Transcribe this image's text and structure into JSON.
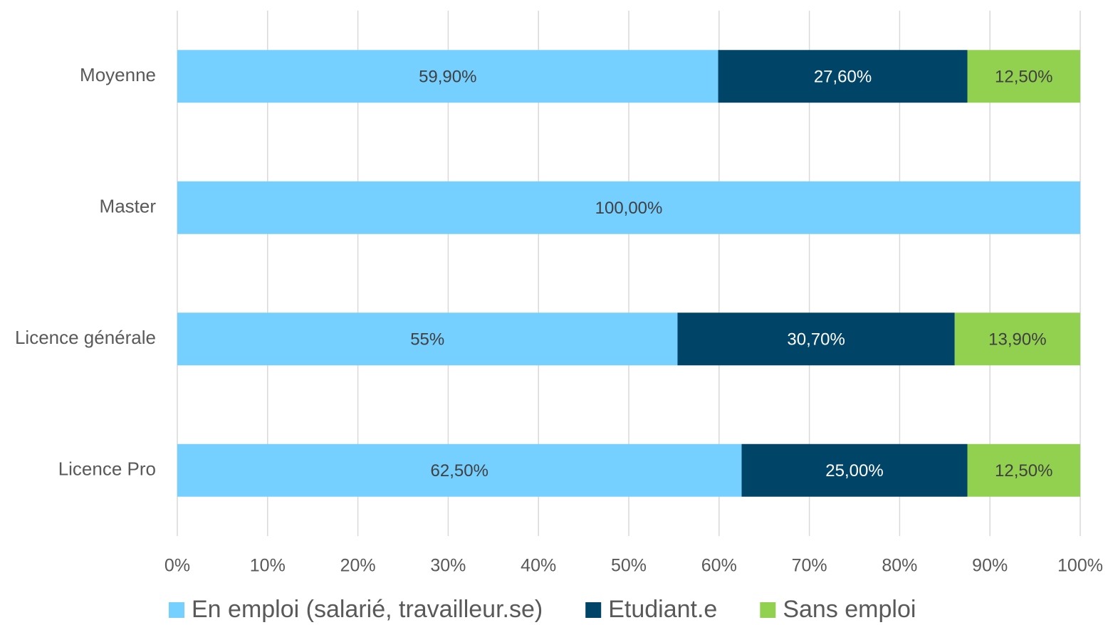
{
  "chart_data": {
    "type": "stacked_bar_horizontal",
    "categories": [
      "Moyenne",
      "Master",
      "Licence générale",
      "Licence Pro"
    ],
    "series": [
      {
        "name": "En emploi (salarié, travailleur.se)",
        "color": "#75cfff",
        "values": [
          59.9,
          100,
          55.4,
          62.5
        ],
        "value_labels": [
          "59,90%",
          "100,00%",
          "55%",
          "62,50%"
        ]
      },
      {
        "name": "Etudiant.e",
        "color": "#004468",
        "values": [
          27.6,
          null,
          30.7,
          25
        ],
        "value_labels": [
          "27,60%",
          null,
          "30,70%",
          "25,00%"
        ]
      },
      {
        "name": "Sans emploi",
        "color": "#92d050",
        "values": [
          12.5,
          null,
          13.9,
          12.5
        ],
        "value_labels": [
          "12,50%",
          null,
          "13,90%",
          "12,50%"
        ]
      }
    ],
    "xlim": [
      0,
      100
    ],
    "xticks": [
      {
        "value": 0,
        "label": "0%"
      },
      {
        "value": 10,
        "label": "10%"
      },
      {
        "value": 20,
        "label": "20%"
      },
      {
        "value": 30,
        "label": "30%"
      },
      {
        "value": 40,
        "label": "40%"
      },
      {
        "value": 50,
        "label": "50%"
      },
      {
        "value": 60,
        "label": "60%"
      },
      {
        "value": 70,
        "label": "70%"
      },
      {
        "value": 80,
        "label": "80%"
      },
      {
        "value": 90,
        "label": "90%"
      },
      {
        "value": 100,
        "label": "100%"
      }
    ],
    "grid": true,
    "legend": "bottom"
  }
}
